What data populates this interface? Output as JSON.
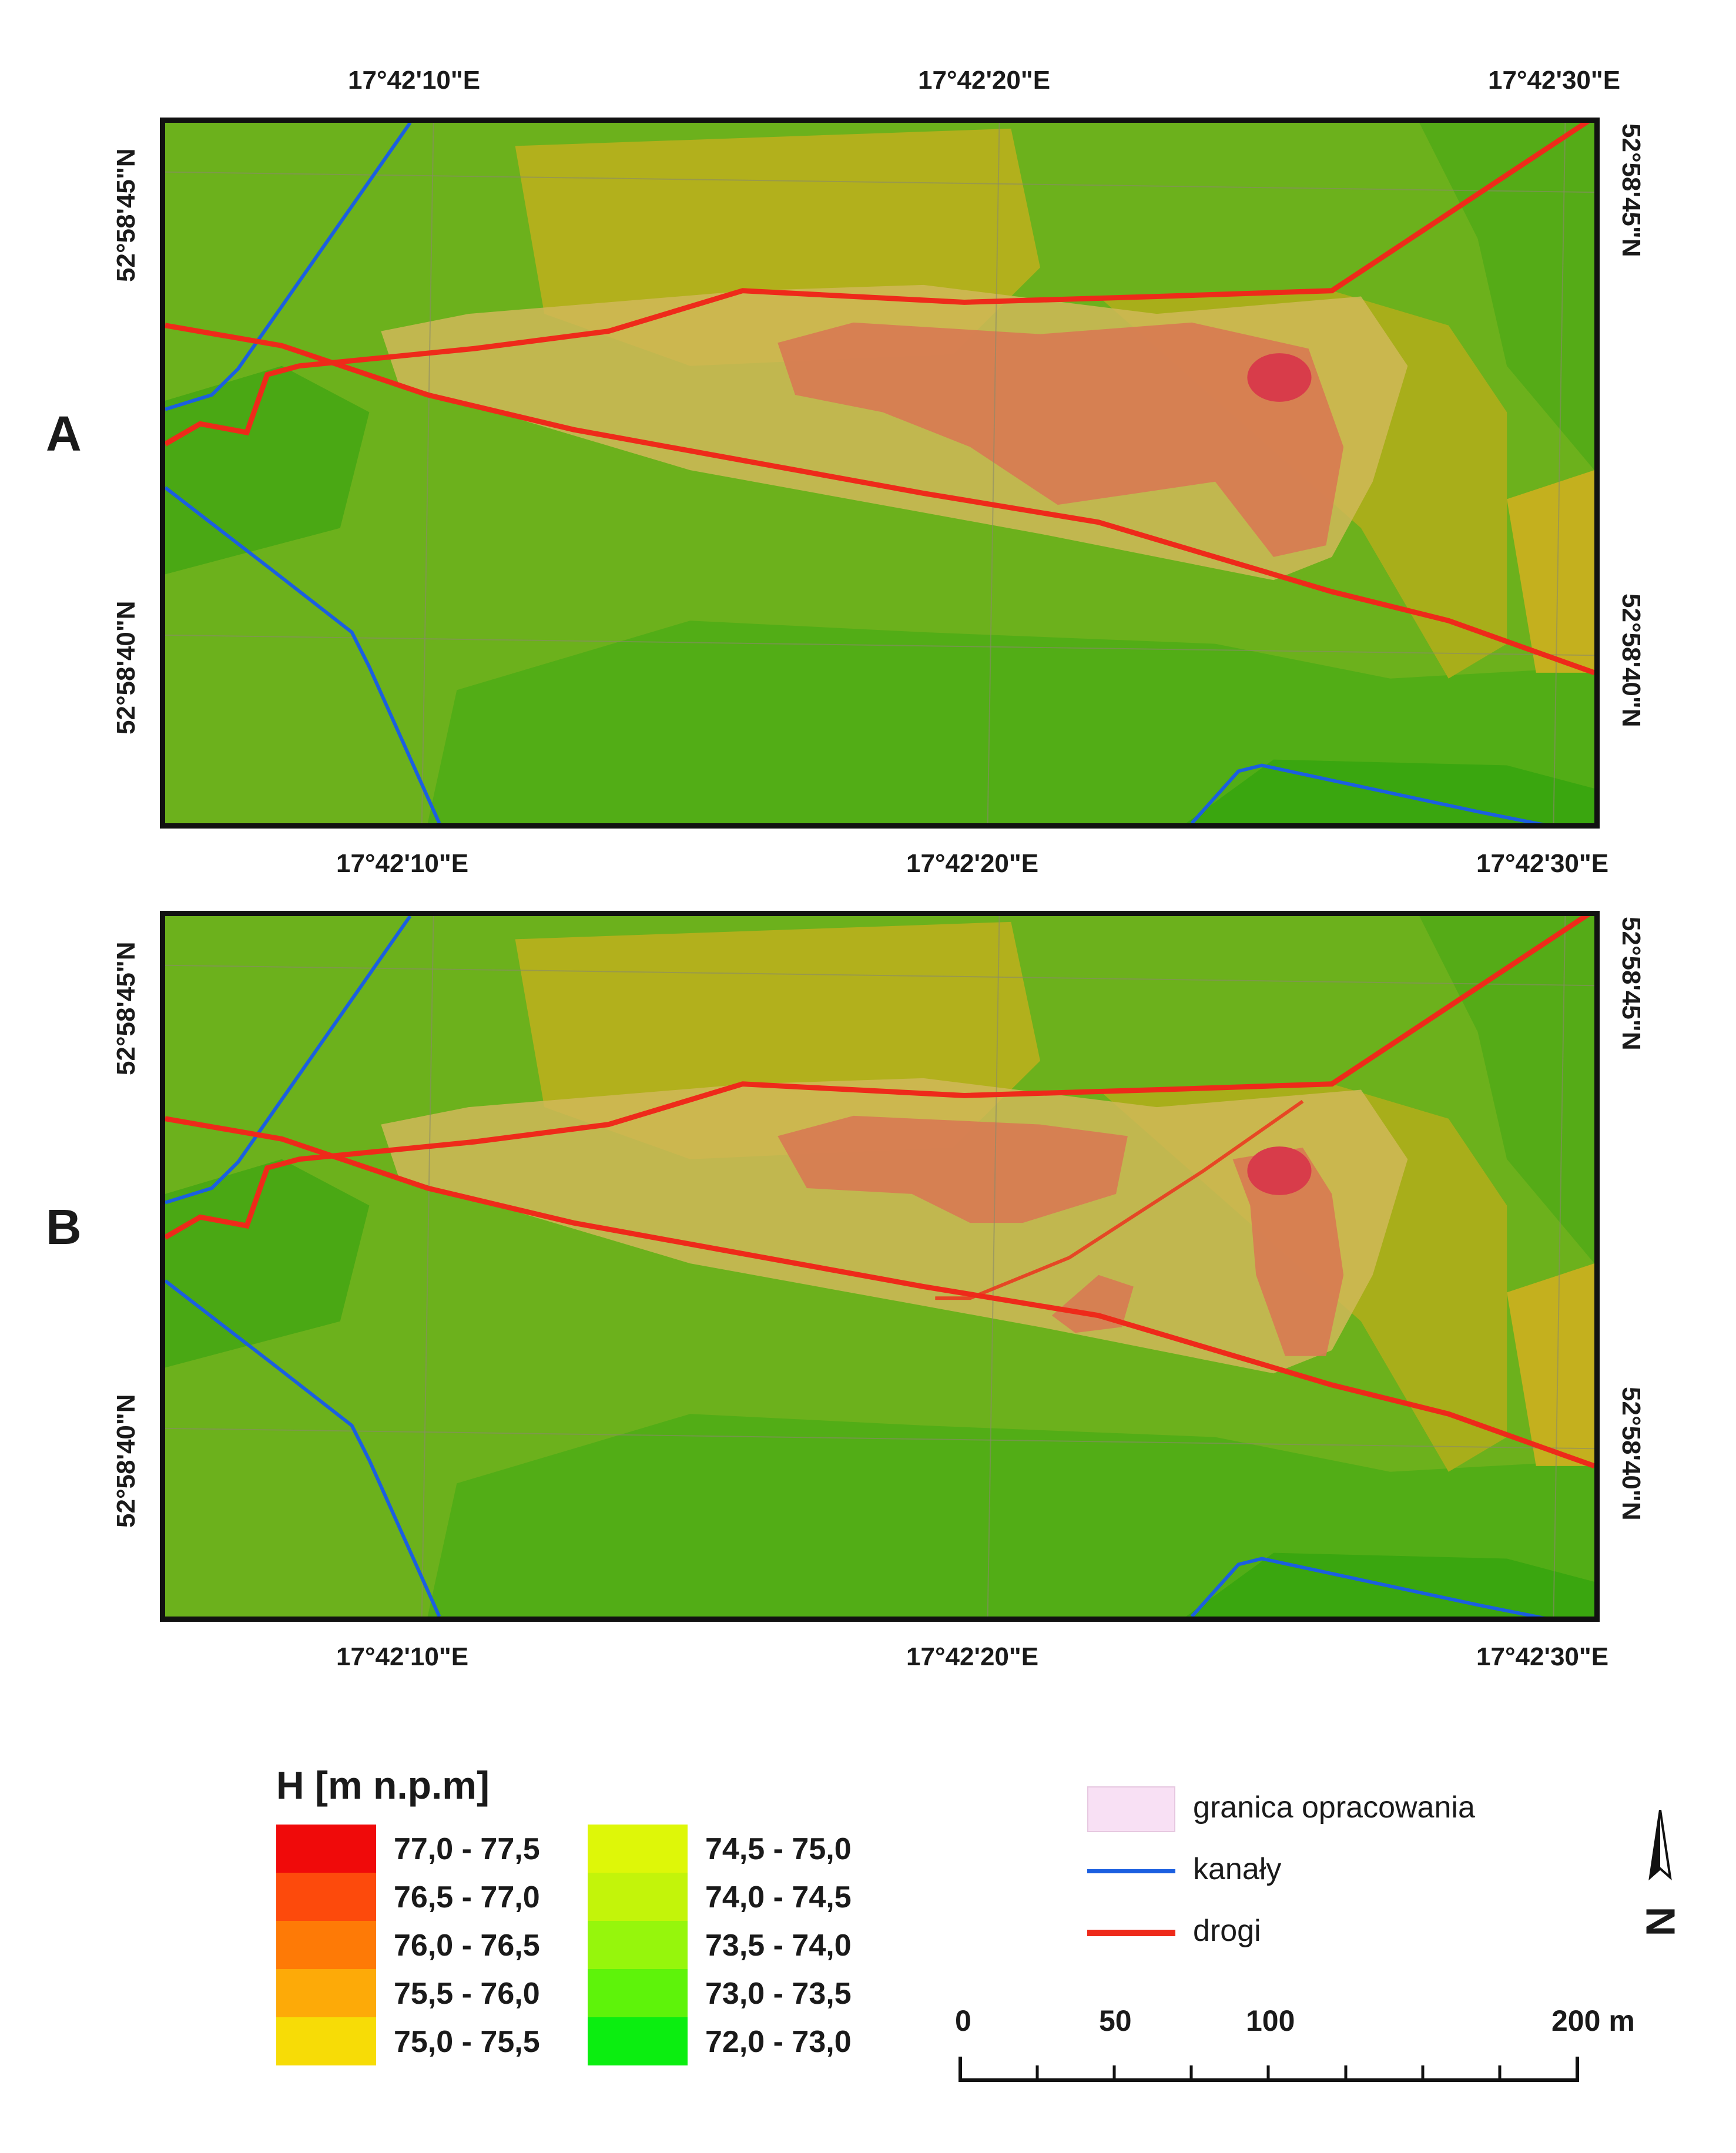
{
  "panels": [
    {
      "id": "A",
      "label": "A",
      "top_lon": [
        "17°42'10\"E",
        "17°42'20\"E",
        "17°42'30\"E"
      ],
      "bottom_lon": [
        "17°42'10\"E",
        "17°42'20\"E",
        "17°42'30\"E"
      ],
      "left_lat": [
        "52°58'45\"N",
        "52°58'40\"N"
      ],
      "right_lat": [
        "52°58'45\"N",
        "52°58'40\"N"
      ]
    },
    {
      "id": "B",
      "label": "B",
      "top_lon": [
        "17°42'10\"E",
        "17°42'20\"E",
        "17°42'30\"E"
      ],
      "bottom_lon": [
        "17°42'10\"E",
        "17°42'20\"E",
        "17°42'30\"E"
      ],
      "left_lat": [
        "52°58'45\"N",
        "52°58'40\"N"
      ],
      "right_lat": [
        "52°58'45\"N",
        "52°58'40\"N"
      ]
    }
  ],
  "legend": {
    "title": "H [m n.p.m]",
    "classes": [
      {
        "label": "77,0 - 77,5",
        "color": "#f00a0a"
      },
      {
        "label": "76,5 - 77,0",
        "color": "#fd4a0c"
      },
      {
        "label": "76,0 - 76,5",
        "color": "#fe7a06"
      },
      {
        "label": "75,5 - 76,0",
        "color": "#fdaa08"
      },
      {
        "label": "75,0 - 75,5",
        "color": "#f7dc06"
      },
      {
        "label": "74,5 - 75,0",
        "color": "#def708"
      },
      {
        "label": "74,0 - 74,5",
        "color": "#c3f40a"
      },
      {
        "label": "73,5 - 74,0",
        "color": "#96f60c"
      },
      {
        "label": "73,0 - 73,5",
        "color": "#5ef30a"
      },
      {
        "label": "72,0 - 73,0",
        "color": "#0bee10"
      }
    ]
  },
  "symbols": {
    "boundary": {
      "label": "granica opracowania",
      "color": "#f8e0f4"
    },
    "canals": {
      "label": "kanały",
      "color": "#1b5fe0"
    },
    "roads": {
      "label": "drogi",
      "color": "#ee2a1a"
    }
  },
  "scale_bar": {
    "labels": [
      "0",
      "50",
      "100",
      "200 m"
    ]
  },
  "north_arrow": {
    "symbol": "N"
  }
}
